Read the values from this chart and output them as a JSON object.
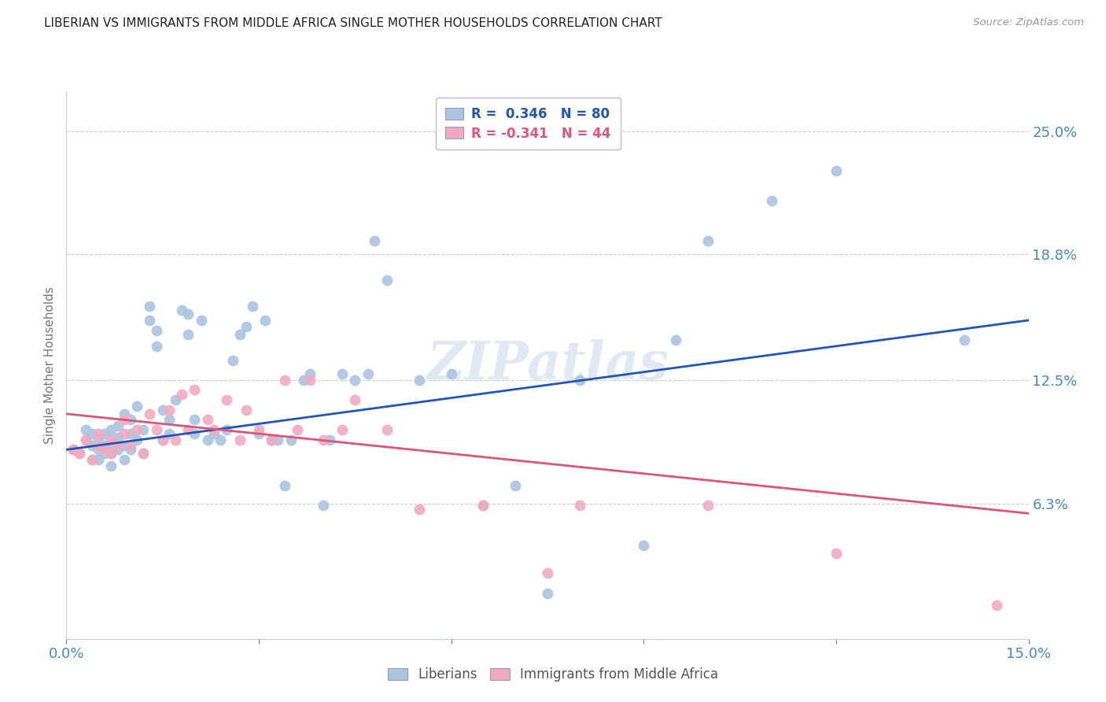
{
  "title": "LIBERIAN VS IMMIGRANTS FROM MIDDLE AFRICA SINGLE MOTHER HOUSEHOLDS CORRELATION CHART",
  "source": "Source: ZipAtlas.com",
  "ylabel": "Single Mother Households",
  "ytick_labels": [
    "25.0%",
    "18.8%",
    "12.5%",
    "6.3%"
  ],
  "ytick_values": [
    0.25,
    0.188,
    0.125,
    0.063
  ],
  "xlim": [
    0.0,
    0.15
  ],
  "ylim": [
    -0.005,
    0.27
  ],
  "legend_blue_r": "0.346",
  "legend_blue_n": "80",
  "legend_pink_r": "-0.341",
  "legend_pink_n": "44",
  "blue_color": "#aac4e2",
  "pink_color": "#f2aabf",
  "blue_line_color": "#2255bb",
  "pink_line_color": "#dd5577",
  "title_color": "#222222",
  "axis_label_color": "#4488cc",
  "watermark": "ZIPatlas",
  "blue_scatter_x": [
    0.001,
    0.002,
    0.003,
    0.003,
    0.004,
    0.004,
    0.004,
    0.005,
    0.005,
    0.005,
    0.006,
    0.006,
    0.006,
    0.007,
    0.007,
    0.007,
    0.007,
    0.008,
    0.008,
    0.008,
    0.009,
    0.009,
    0.009,
    0.01,
    0.01,
    0.01,
    0.011,
    0.011,
    0.012,
    0.012,
    0.013,
    0.013,
    0.014,
    0.014,
    0.015,
    0.015,
    0.016,
    0.016,
    0.017,
    0.018,
    0.019,
    0.019,
    0.02,
    0.02,
    0.021,
    0.022,
    0.023,
    0.024,
    0.025,
    0.026,
    0.027,
    0.028,
    0.029,
    0.03,
    0.031,
    0.032,
    0.033,
    0.034,
    0.035,
    0.037,
    0.038,
    0.04,
    0.041,
    0.043,
    0.045,
    0.047,
    0.048,
    0.05,
    0.055,
    0.06,
    0.065,
    0.07,
    0.075,
    0.08,
    0.09,
    0.095,
    0.1,
    0.11,
    0.12,
    0.14
  ],
  "blue_scatter_y": [
    0.09,
    0.088,
    0.095,
    0.1,
    0.085,
    0.092,
    0.098,
    0.085,
    0.09,
    0.095,
    0.088,
    0.092,
    0.098,
    0.082,
    0.088,
    0.093,
    0.1,
    0.09,
    0.096,
    0.102,
    0.085,
    0.092,
    0.108,
    0.09,
    0.098,
    0.105,
    0.095,
    0.112,
    0.088,
    0.1,
    0.155,
    0.162,
    0.142,
    0.15,
    0.095,
    0.11,
    0.098,
    0.105,
    0.115,
    0.16,
    0.148,
    0.158,
    0.098,
    0.105,
    0.155,
    0.095,
    0.098,
    0.095,
    0.1,
    0.135,
    0.148,
    0.152,
    0.162,
    0.098,
    0.155,
    0.095,
    0.095,
    0.072,
    0.095,
    0.125,
    0.128,
    0.062,
    0.095,
    0.128,
    0.125,
    0.128,
    0.195,
    0.175,
    0.125,
    0.128,
    0.062,
    0.072,
    0.018,
    0.125,
    0.042,
    0.145,
    0.195,
    0.215,
    0.23,
    0.145
  ],
  "pink_scatter_x": [
    0.001,
    0.002,
    0.003,
    0.004,
    0.005,
    0.005,
    0.006,
    0.007,
    0.007,
    0.008,
    0.009,
    0.009,
    0.01,
    0.011,
    0.012,
    0.013,
    0.014,
    0.015,
    0.016,
    0.017,
    0.018,
    0.019,
    0.02,
    0.022,
    0.023,
    0.025,
    0.027,
    0.028,
    0.03,
    0.032,
    0.034,
    0.036,
    0.038,
    0.04,
    0.043,
    0.045,
    0.05,
    0.055,
    0.065,
    0.075,
    0.08,
    0.1,
    0.12,
    0.145
  ],
  "pink_scatter_y": [
    0.09,
    0.088,
    0.095,
    0.085,
    0.092,
    0.098,
    0.09,
    0.088,
    0.095,
    0.092,
    0.105,
    0.098,
    0.092,
    0.1,
    0.088,
    0.108,
    0.1,
    0.095,
    0.11,
    0.095,
    0.118,
    0.1,
    0.12,
    0.105,
    0.1,
    0.115,
    0.095,
    0.11,
    0.1,
    0.095,
    0.125,
    0.1,
    0.125,
    0.095,
    0.1,
    0.115,
    0.1,
    0.06,
    0.062,
    0.028,
    0.062,
    0.062,
    0.038,
    0.012
  ],
  "blue_line_x": [
    0.0,
    0.15
  ],
  "blue_line_y": [
    0.09,
    0.155
  ],
  "pink_line_x": [
    0.0,
    0.15
  ],
  "pink_line_y": [
    0.108,
    0.058
  ]
}
